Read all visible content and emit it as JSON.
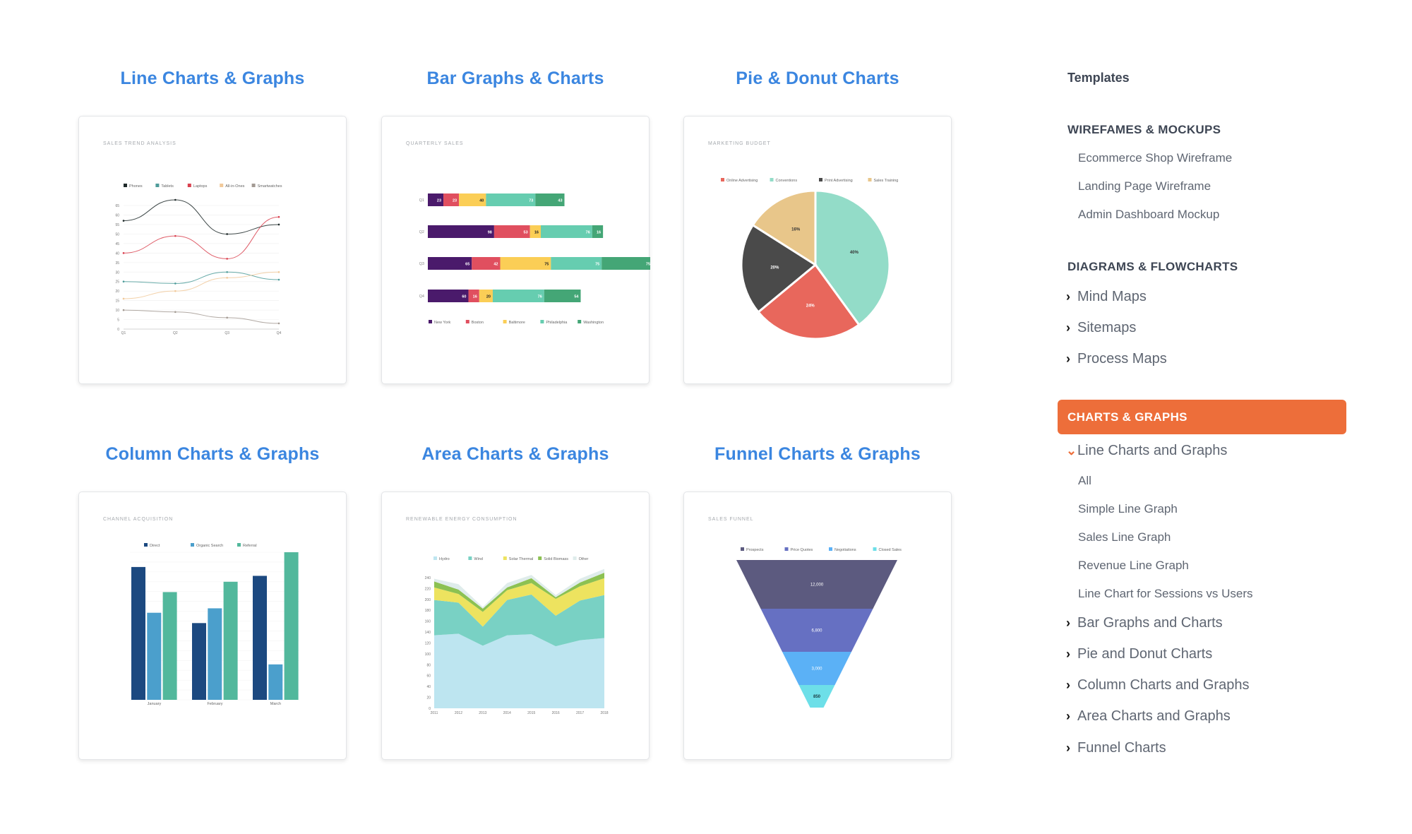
{
  "sections": [
    {
      "title": "Line Charts & Graphs",
      "card_label": "Sales Trend Analysis"
    },
    {
      "title": "Bar Graphs & Charts",
      "card_label": "Quarterly Sales"
    },
    {
      "title": "Pie & Donut Charts",
      "card_label": "Marketing Budget"
    },
    {
      "title": "Column Charts & Graphs",
      "card_label": "Channel Acquisition"
    },
    {
      "title": "Area Charts & Graphs",
      "card_label": "Renewable Energy Consumption"
    },
    {
      "title": "Funnel Charts & Graphs",
      "card_label": "Sales Funnel"
    }
  ],
  "sidebar": {
    "title": "Templates",
    "groups": [
      {
        "heading": "WIREFAMES & MOCKUPS",
        "items": [
          "Ecommerce Shop Wireframe",
          "Landing Page Wireframe",
          "Admin Dashboard Mockup"
        ]
      },
      {
        "heading": "DIAGRAMS & FLOWCHARTS",
        "items": [
          "Mind Maps",
          "Sitemaps",
          "Process Maps"
        ]
      },
      {
        "heading": "CHARTS & GRAPHS",
        "active": true,
        "expanded_item": "Line Charts and Graphs",
        "expanded_children": [
          "All",
          "Simple Line Graph",
          "Sales Line Graph",
          "Revenue Line Graph",
          "Line Chart for Sessions vs Users"
        ],
        "items": [
          "Bar Graphs and Charts",
          "Pie and Donut Charts",
          "Column Charts and Graphs",
          "Area Charts and Graphs",
          "Funnel Charts"
        ]
      }
    ]
  },
  "colors": {
    "title_blue": "#3b86e0",
    "active_orange": "#ed6e3a",
    "heading_dark": "#3e4654",
    "item_gray": "#5f6672"
  },
  "chart_data": [
    {
      "type": "line",
      "title": "SALES TREND ANALYSIS",
      "categories": [
        "Q1",
        "Q2",
        "Q3",
        "Q4"
      ],
      "series": [
        {
          "name": "Phones",
          "color": "#1f2a2a",
          "values": [
            57,
            68,
            50,
            55
          ]
        },
        {
          "name": "Tablets",
          "color": "#4e9c9a",
          "values": [
            25,
            24,
            30,
            26
          ]
        },
        {
          "name": "Laptops",
          "color": "#d9414f",
          "values": [
            40,
            49,
            37,
            59
          ]
        },
        {
          "name": "All-in-Ones",
          "color": "#f1c99a",
          "values": [
            16,
            20,
            27,
            30
          ]
        },
        {
          "name": "Smartwatches",
          "color": "#a39a93",
          "values": [
            10,
            9,
            6,
            3
          ]
        }
      ],
      "yticks": [
        0,
        5,
        10,
        15,
        20,
        25,
        30,
        35,
        40,
        45,
        50,
        55,
        60,
        65
      ],
      "ylim": [
        0,
        68
      ],
      "legend_position": "top",
      "grid": true
    },
    {
      "type": "bar",
      "orientation": "horizontal",
      "stacked": true,
      "title": "QUARTERLY SALES",
      "categories": [
        "Q1",
        "Q2",
        "Q3",
        "Q4"
      ],
      "series": [
        {
          "name": "New York",
          "color": "#4a1a6b",
          "label_color": "#ffffff",
          "values": [
            23,
            98,
            65,
            60
          ]
        },
        {
          "name": "Boston",
          "color": "#e04f5f",
          "label_color": "#ffffff",
          "values": [
            23,
            53,
            42,
            16
          ]
        },
        {
          "name": "Baltimore",
          "color": "#fbce56",
          "label_color": "#222222",
          "values": [
            40,
            16,
            75,
            20
          ]
        },
        {
          "name": "Philadelphia",
          "color": "#66cdb0",
          "label_color": "#ffffff",
          "values": [
            73,
            76,
            75,
            76
          ]
        },
        {
          "name": "Washington",
          "color": "#44a676",
          "label_color": "#ffffff",
          "values": [
            43,
            16,
            75,
            54
          ]
        }
      ],
      "legend_position": "bottom"
    },
    {
      "type": "pie",
      "title": "MARKETING BUDGET",
      "slices": [
        {
          "name": "Conventions",
          "value": 40,
          "label": "40%",
          "color": "#93dcc8",
          "label_color": "#333333"
        },
        {
          "name": "Online Advertising",
          "value": 24,
          "label": "24%",
          "color": "#e8675c",
          "label_color": "#ffffff"
        },
        {
          "name": "Print Advertising",
          "value": 20,
          "label": "20%",
          "color": "#4a4a4a",
          "label_color": "#ffffff"
        },
        {
          "name": "Sales Training",
          "value": 16,
          "label": "16%",
          "color": "#e8c68a",
          "label_color": "#333333"
        }
      ],
      "legend": [
        "Online Advertising",
        "Conventions",
        "Print Advertising",
        "Sales Training"
      ],
      "legend_position": "top"
    },
    {
      "type": "bar",
      "orientation": "vertical",
      "title": "CHANNEL ACQUISITION",
      "categories": [
        "January",
        "February",
        "March"
      ],
      "series": [
        {
          "name": "Direct",
          "color": "#1c4980",
          "values": [
            90,
            52,
            84
          ]
        },
        {
          "name": "Organic Search",
          "color": "#4b9fcc",
          "values": [
            59,
            62,
            24
          ]
        },
        {
          "name": "Referral",
          "color": "#52b89c",
          "values": [
            73,
            80,
            100
          ]
        }
      ],
      "ylim": [
        0,
        100
      ],
      "legend_position": "top",
      "grid": true
    },
    {
      "type": "area",
      "stacked": true,
      "title": "RENEWABLE ENERGY CONSUMPTION",
      "x": [
        "2011",
        "2012",
        "2013",
        "2014",
        "2015",
        "2016",
        "2017",
        "2018"
      ],
      "series": [
        {
          "name": "Hydro",
          "color": "#bde5f0",
          "values": [
            134,
            137,
            115,
            134,
            136,
            114,
            125,
            129
          ]
        },
        {
          "name": "Wind",
          "color": "#79d1c4",
          "values": [
            65,
            57,
            35,
            65,
            73,
            56,
            73,
            79
          ]
        },
        {
          "name": "Solar Thermal",
          "color": "#ede35f",
          "values": [
            23,
            16,
            27,
            18,
            21,
            31,
            26,
            31
          ]
        },
        {
          "name": "Solid Biomass",
          "color": "#8cc152",
          "values": [
            11,
            8,
            6,
            5,
            9,
            3,
            7,
            10
          ]
        },
        {
          "name": "Other",
          "color": "#dfeceb",
          "values": [
            5,
            10,
            3,
            8,
            6,
            4,
            7,
            7
          ]
        }
      ],
      "yticks": [
        0,
        20,
        40,
        60,
        80,
        100,
        120,
        140,
        160,
        180,
        200,
        220,
        240
      ],
      "ylim": [
        0,
        256
      ],
      "legend_position": "top"
    },
    {
      "type": "funnel",
      "title": "SALES FUNNEL",
      "stages": [
        {
          "name": "Prospects",
          "value": 12000,
          "label": "12,000",
          "color": "#5c5a7f",
          "label_color": "#ffffff"
        },
        {
          "name": "Price Quotes",
          "value": 6800,
          "label": "6,800",
          "color": "#6670c2",
          "label_color": "#ffffff"
        },
        {
          "name": "Negotiations",
          "value": 3000,
          "label": "3,000",
          "color": "#5bb1f6",
          "label_color": "#ffffff"
        },
        {
          "name": "Closed Sales",
          "value": 850,
          "label": "850",
          "color": "#6ddfe8",
          "label_color": "#1b3b40"
        }
      ],
      "legend_position": "top"
    }
  ]
}
